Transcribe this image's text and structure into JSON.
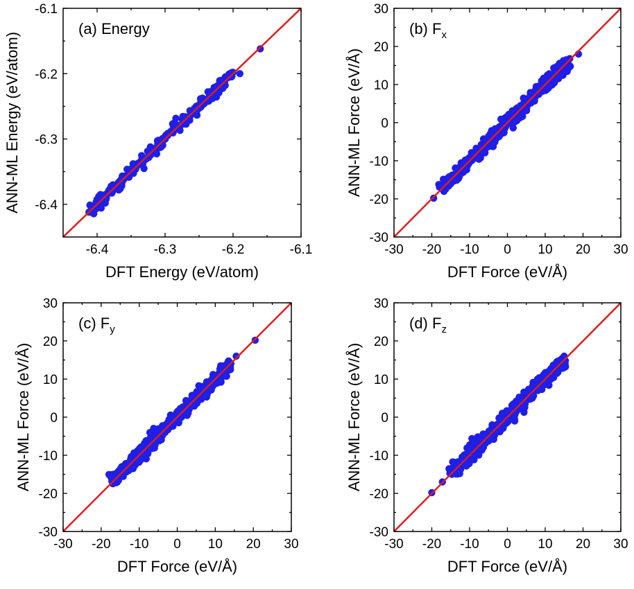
{
  "chart_data": [
    {
      "type": "scatter",
      "label": "(a) Energy",
      "label_sub": "",
      "xlabel": "DFT Energy (eV/atom)",
      "ylabel": "ANN-ML Energy (eV/atom)",
      "xlim": [
        -6.45,
        -6.1
      ],
      "ylim": [
        -6.45,
        -6.1
      ],
      "xticks": [
        -6.4,
        -6.3,
        -6.2,
        -6.1
      ],
      "yticks": [
        -6.4,
        -6.3,
        -6.2,
        -6.1
      ],
      "tick_labels_x": [
        "-6.4",
        "-6.3",
        "-6.2",
        "-6.1"
      ],
      "tick_labels_y": [
        "-6.4",
        "-6.3",
        "-6.2",
        "-6.1"
      ],
      "diagonal": [
        [
          -6.45,
          -6.45
        ],
        [
          -6.1,
          -6.1
        ]
      ],
      "point_range": [
        -6.41,
        -6.2
      ],
      "points": [
        [
          -6.41,
          -6.402
        ],
        [
          -6.4,
          -6.4
        ],
        [
          -6.395,
          -6.385
        ],
        [
          -6.388,
          -6.398
        ],
        [
          -6.16,
          -6.162
        ],
        [
          -6.2,
          -6.198
        ],
        [
          -6.19,
          -6.2
        ]
      ]
    },
    {
      "type": "scatter",
      "label": "(b) F",
      "label_sub": "x",
      "xlabel": "DFT Force (eV/Å)",
      "ylabel": "ANN-ML Force (eV/Å)",
      "xlim": [
        -30,
        30
      ],
      "ylim": [
        -30,
        30
      ],
      "xticks": [
        -30,
        -20,
        -10,
        0,
        10,
        20,
        30
      ],
      "yticks": [
        -30,
        -20,
        -10,
        0,
        10,
        20,
        30
      ],
      "tick_labels_x": [
        "-30",
        "-20",
        "-10",
        "0",
        "10",
        "20",
        "30"
      ],
      "tick_labels_y": [
        "-30",
        "-20",
        "-10",
        "0",
        "10",
        "20",
        "30"
      ],
      "diagonal": [
        [
          -30,
          -30
        ],
        [
          30,
          30
        ]
      ],
      "point_range": [
        -17.5,
        16
      ],
      "points": [
        [
          -19.5,
          -19.8
        ],
        [
          -17.2,
          -17
        ],
        [
          16.5,
          16.8
        ],
        [
          18.8,
          18
        ],
        [
          15.5,
          16.5
        ]
      ]
    },
    {
      "type": "scatter",
      "label": "(c) F",
      "label_sub": "y",
      "xlabel": "DFT Force (eV/Å)",
      "ylabel": "ANN-ML Force (eV/Å)",
      "xlim": [
        -30,
        30
      ],
      "ylim": [
        -30,
        30
      ],
      "xticks": [
        -30,
        -20,
        -10,
        0,
        10,
        20,
        30
      ],
      "yticks": [
        -30,
        -20,
        -10,
        0,
        10,
        20,
        30
      ],
      "tick_labels_x": [
        "-30",
        "-20",
        "-10",
        "0",
        "10",
        "20",
        "30"
      ],
      "tick_labels_y": [
        "-30",
        "-20",
        "-10",
        "0",
        "10",
        "20",
        "30"
      ],
      "diagonal": [
        [
          -30,
          -30
        ],
        [
          30,
          30
        ]
      ],
      "point_range": [
        -17,
        14
      ],
      "points": [
        [
          -17.2,
          -16.8
        ],
        [
          -16.5,
          -15.8
        ],
        [
          15.5,
          16
        ],
        [
          20.5,
          20.2
        ],
        [
          14,
          12.5
        ]
      ]
    },
    {
      "type": "scatter",
      "label": "(d) F",
      "label_sub": "z",
      "xlabel": "DFT Force (eV/Å)",
      "ylabel": "ANN-ML Force (eV/Å)",
      "xlim": [
        -30,
        30
      ],
      "ylim": [
        -30,
        30
      ],
      "xticks": [
        -30,
        -20,
        -10,
        0,
        10,
        20,
        30
      ],
      "yticks": [
        -30,
        -20,
        -10,
        0,
        10,
        20,
        30
      ],
      "tick_labels_x": [
        "-30",
        "-20",
        "-10",
        "0",
        "10",
        "20",
        "30"
      ],
      "tick_labels_y": [
        "-30",
        "-20",
        "-10",
        "0",
        "10",
        "20",
        "30"
      ],
      "diagonal": [
        [
          -30,
          -30
        ],
        [
          30,
          30
        ]
      ],
      "point_range": [
        -15,
        15
      ],
      "points": [
        [
          -20,
          -19.8
        ],
        [
          -17.2,
          -17
        ],
        [
          15,
          16
        ],
        [
          14.5,
          15
        ],
        [
          15,
          13
        ]
      ]
    }
  ],
  "colors": {
    "points": "#1f1fe6",
    "diagonal": "#e01b1b"
  }
}
